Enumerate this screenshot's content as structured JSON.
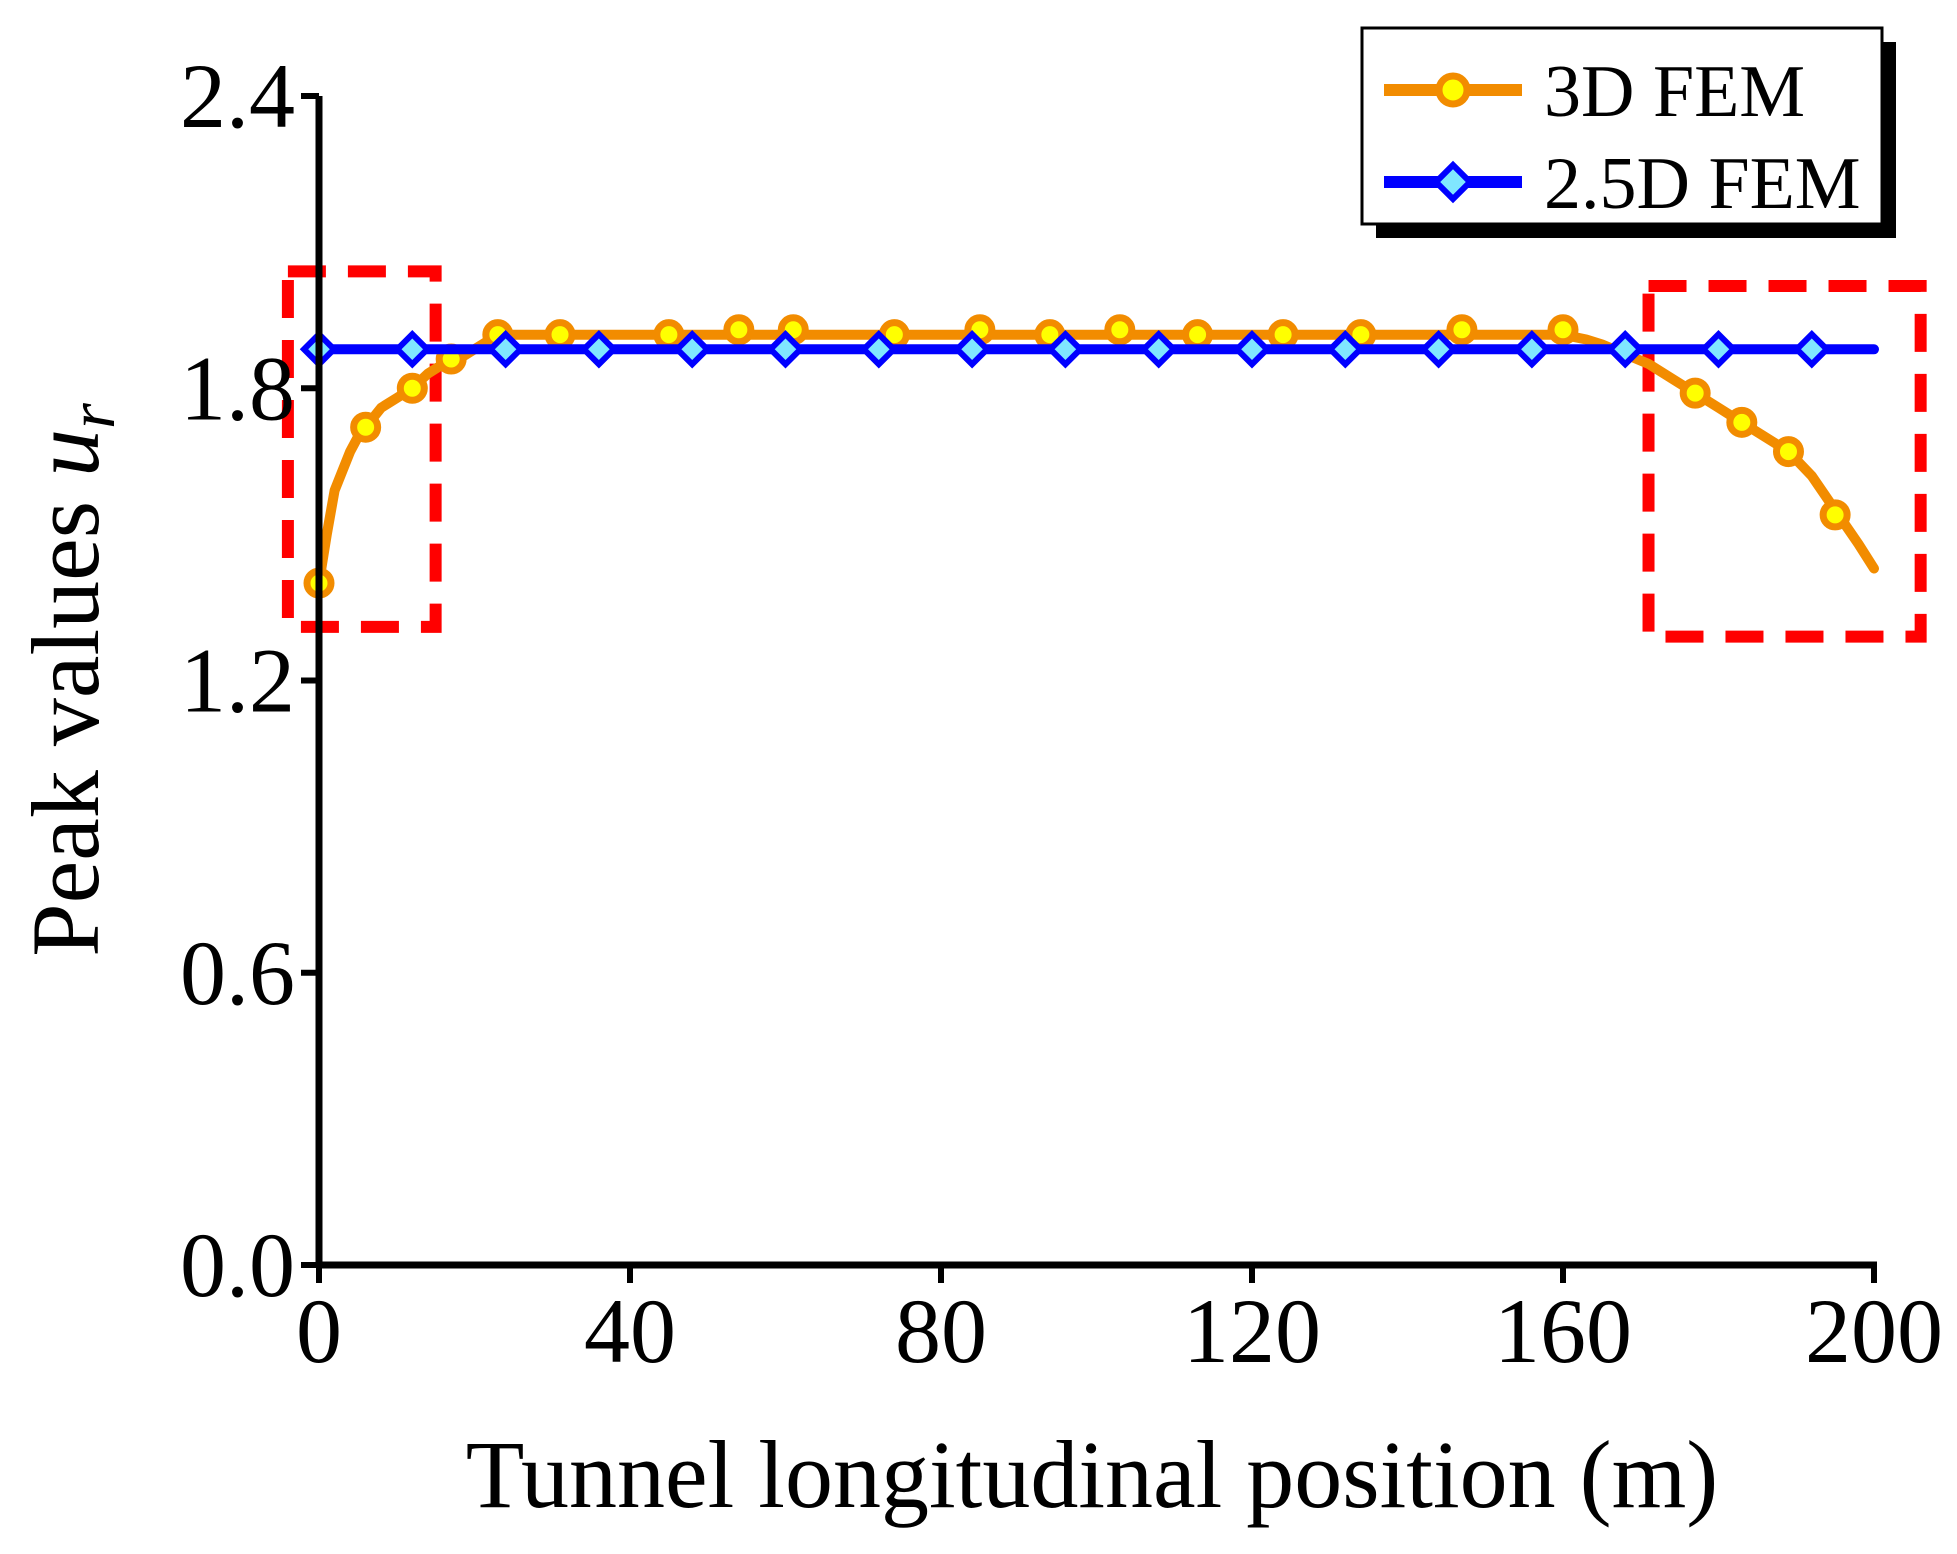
{
  "chart_data": {
    "type": "line",
    "title": "",
    "xlabel": "Tunnel longitudinal position (m)",
    "ylabel_prefix": "Peak values ",
    "ylabel_var": "u",
    "ylabel_sub": "r",
    "xlim": [
      0,
      200
    ],
    "ylim": [
      0.0,
      2.4
    ],
    "xticks": [
      0,
      40,
      80,
      120,
      160,
      200
    ],
    "xtick_labels": [
      "0",
      "40",
      "80",
      "120",
      "160",
      "200"
    ],
    "yticks": [
      0.0,
      0.6,
      1.2,
      1.8,
      2.4
    ],
    "ytick_labels": [
      "0.0",
      "0.6",
      "1.2",
      "1.8",
      "2.4"
    ],
    "grid": false,
    "legend_position": "top-right",
    "series": [
      {
        "name": "3D FEM",
        "color": "#F28C00",
        "marker": "circle",
        "marker_fill": "#FFFF00",
        "line": {
          "x": [
            0,
            1,
            2,
            3,
            4,
            5,
            6,
            8,
            10,
            12,
            14,
            16,
            18,
            20,
            23,
            26,
            30,
            35,
            40,
            45,
            50,
            54,
            58,
            61,
            65,
            70,
            74,
            80,
            85,
            90,
            95,
            100,
            104,
            110,
            113,
            120,
            125,
            130,
            134,
            140,
            147,
            155,
            160,
            163,
            165,
            168,
            171,
            174,
            177,
            180,
            182,
            185,
            189,
            192,
            195,
            198,
            200
          ],
          "y": [
            1.4,
            1.5,
            1.59,
            1.63,
            1.67,
            1.7,
            1.72,
            1.76,
            1.78,
            1.8,
            1.83,
            1.85,
            1.86,
            1.88,
            1.91,
            1.91,
            1.91,
            1.91,
            1.91,
            1.91,
            1.91,
            1.91,
            1.91,
            1.91,
            1.91,
            1.91,
            1.91,
            1.91,
            1.91,
            1.91,
            1.91,
            1.91,
            1.91,
            1.91,
            1.91,
            1.91,
            1.91,
            1.91,
            1.91,
            1.91,
            1.91,
            1.91,
            1.91,
            1.9,
            1.89,
            1.87,
            1.85,
            1.82,
            1.79,
            1.76,
            1.74,
            1.71,
            1.67,
            1.62,
            1.55,
            1.48,
            1.43
          ]
        },
        "markers": {
          "x": [
            0,
            6,
            12,
            17,
            23,
            31,
            45,
            54,
            61,
            74,
            85,
            94,
            103,
            113,
            124,
            134,
            147,
            160,
            177,
            183,
            189,
            195
          ],
          "y": [
            1.4,
            1.72,
            1.8,
            1.86,
            1.91,
            1.91,
            1.91,
            1.92,
            1.92,
            1.91,
            1.92,
            1.91,
            1.92,
            1.91,
            1.91,
            1.91,
            1.92,
            1.92,
            1.79,
            1.73,
            1.67,
            1.54
          ]
        }
      },
      {
        "name": "2.5D FEM",
        "color": "#0000FF",
        "marker": "diamond",
        "marker_fill": "#80E6FF",
        "line": {
          "x": [
            0,
            200
          ],
          "y": [
            1.88,
            1.88
          ]
        },
        "markers": {
          "x": [
            0,
            12,
            24,
            36,
            48,
            60,
            72,
            84,
            96,
            108,
            120,
            132,
            144,
            156,
            168,
            180,
            192
          ],
          "y": [
            1.88,
            1.88,
            1.88,
            1.88,
            1.88,
            1.88,
            1.88,
            1.88,
            1.88,
            1.88,
            1.88,
            1.88,
            1.88,
            1.88,
            1.88,
            1.88,
            1.88
          ]
        }
      }
    ],
    "annotations": [
      {
        "type": "dashed-box",
        "color": "#FF0000",
        "x_range": [
          -4,
          15
        ],
        "y_range": [
          1.31,
          2.04
        ]
      },
      {
        "type": "dashed-box",
        "color": "#FF0000",
        "x_range": [
          171,
          206
        ],
        "y_range": [
          1.29,
          2.01
        ]
      }
    ]
  }
}
